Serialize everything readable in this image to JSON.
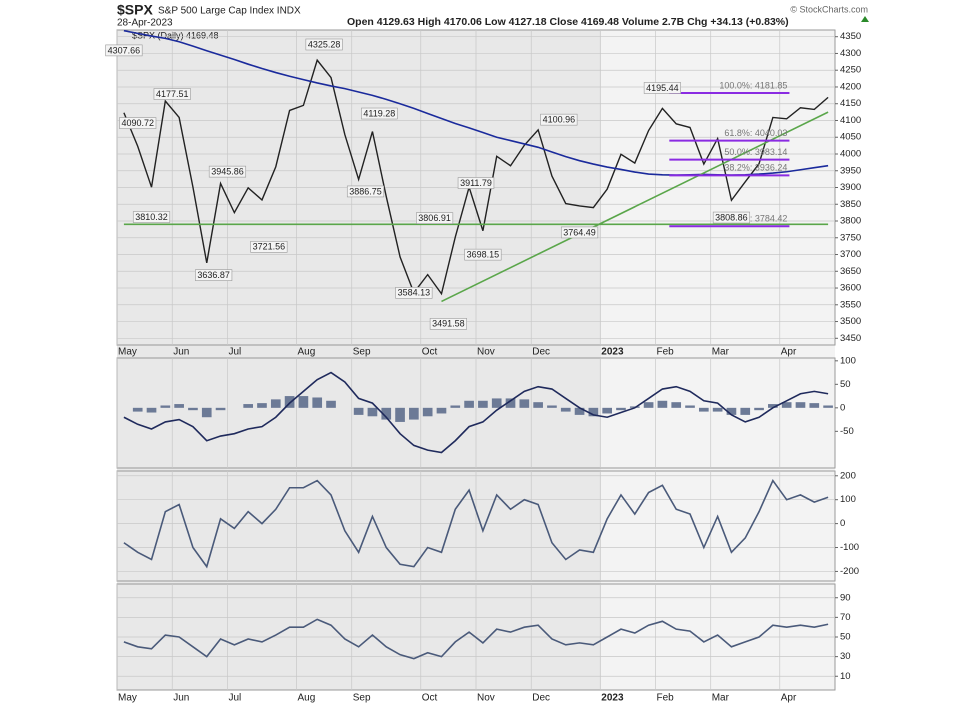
{
  "header": {
    "symbol": "$SPX",
    "name": "S&P 500 Large Cap Index INDX",
    "date": "28-Apr-2023",
    "quote": "Open 4129.63  High 4170.06  Low 4127.18  Close 4169.48  Volume 2.7B  Chg +34.13 (+0.83%)",
    "credit": "© StockCharts.com",
    "legend": "$SPX (Daily) 4169.48"
  },
  "chart_data": [
    {
      "type": "line",
      "categories": [
        "May",
        null,
        null,
        null,
        "Jun",
        null,
        null,
        null,
        "Jul",
        null,
        null,
        null,
        null,
        "Aug",
        null,
        null,
        null,
        "Sep",
        null,
        null,
        null,
        null,
        "Oct",
        null,
        null,
        null,
        "Nov",
        null,
        null,
        null,
        "Dec",
        null,
        null,
        null,
        null,
        "2023",
        null,
        null,
        null,
        "Feb",
        null,
        null,
        null,
        "Mar",
        null,
        null,
        null,
        null,
        "Apr",
        null,
        null,
        null
      ],
      "series": [
        {
          "name": "$SPX",
          "color": "#222222",
          "values": [
            4123,
            4023,
            3901,
            4158,
            4109,
            3901,
            3675,
            3912,
            3825,
            3899,
            3863,
            3962,
            4130,
            4145,
            4280,
            4228,
            4058,
            3924,
            4067,
            3873,
            3693,
            3586,
            3640,
            3583,
            3752,
            3901,
            3771,
            3993,
            3965,
            4026,
            4072,
            3934,
            3852,
            3845,
            3840,
            3895,
            3999,
            3973,
            4070,
            4136,
            4090,
            4079,
            3970,
            4046,
            3862,
            3917,
            3971,
            4109,
            4105,
            4138,
            4133,
            4169
          ]
        },
        {
          "name": "MA(200)",
          "color": "#1a2a9c",
          "values": [
            4368,
            4360,
            4352,
            4345,
            4335,
            4322,
            4308,
            4295,
            4282,
            4268,
            4255,
            4243,
            4232,
            4222,
            4212,
            4203,
            4195,
            4185,
            4175,
            4163,
            4150,
            4136,
            4121,
            4106,
            4091,
            4078,
            4064,
            4050,
            4040,
            4030,
            4020,
            4006,
            3992,
            3980,
            3970,
            3961,
            3954,
            3946,
            3940,
            3938,
            3937,
            3938,
            3939,
            3938,
            3937,
            3938,
            3940,
            3943,
            3947,
            3953,
            3959,
            3965
          ]
        }
      ],
      "trendlines": [
        {
          "color": "#5aa64a",
          "x": [
            0,
            51
          ],
          "values": [
            3790,
            3790
          ]
        },
        {
          "color": "#5aa64a",
          "x": [
            23,
            51
          ],
          "values": [
            3560,
            4125
          ]
        }
      ],
      "fib": {
        "color": "#8a2be2",
        "x": [
          39.5,
          48.2
        ],
        "levels": [
          {
            "label": "100.0%: 4181.85",
            "value": 4181.85
          },
          {
            "label": "61.8%: 4040.03",
            "value": 4040.03
          },
          {
            "label": "50.0%: 3983.14",
            "value": 3983.14
          },
          {
            "label": "38.2%: 3936.24",
            "value": 3936.24
          },
          {
            "label": "0.0%: 3784.42",
            "value": 3784.42
          }
        ]
      },
      "annotations": [
        {
          "x": 0,
          "value": 4307.66
        },
        {
          "x": 1,
          "value": 4090.72
        },
        {
          "x": 2,
          "value": 3810.32
        },
        {
          "x": 3.5,
          "value": 4177.51
        },
        {
          "x": 6.5,
          "value": 3636.87
        },
        {
          "x": 7.5,
          "value": 3945.86
        },
        {
          "x": 10.5,
          "value": 3721.56
        },
        {
          "x": 14.5,
          "value": 4325.28
        },
        {
          "x": 17.5,
          "value": 3886.75
        },
        {
          "x": 18.5,
          "value": 4119.28
        },
        {
          "x": 21,
          "value": 3584.13
        },
        {
          "x": 22.5,
          "value": 3806.91
        },
        {
          "x": 23.5,
          "value": 3491.58
        },
        {
          "x": 25.5,
          "value": 3911.79
        },
        {
          "x": 26,
          "value": 3698.15
        },
        {
          "x": 31.5,
          "value": 4100.96
        },
        {
          "x": 33,
          "value": 3764.49
        },
        {
          "x": 39,
          "value": 4195.44
        },
        {
          "x": 44,
          "value": 3808.86
        }
      ],
      "ylim": [
        3430,
        4370
      ],
      "yticks": [
        3450,
        3500,
        3550,
        3600,
        3650,
        3700,
        3750,
        3800,
        3850,
        3900,
        3950,
        4000,
        4050,
        4100,
        4150,
        4200,
        4250,
        4300,
        4350
      ],
      "grid": true
    },
    {
      "type": "combo",
      "series": [
        {
          "name": "MACD Histogram",
          "kind": "bar",
          "color": "#6c7a96",
          "values": [
            0,
            -8,
            -10,
            5,
            8,
            -5,
            -20,
            -5,
            0,
            8,
            10,
            18,
            25,
            25,
            22,
            15,
            0,
            -15,
            -18,
            -25,
            -30,
            -25,
            -18,
            -12,
            5,
            15,
            15,
            20,
            20,
            18,
            12,
            5,
            -8,
            -15,
            -18,
            -12,
            -5,
            3,
            12,
            15,
            12,
            5,
            -8,
            -8,
            -15,
            -15,
            -5,
            8,
            12,
            12,
            10,
            5
          ]
        },
        {
          "name": "MACD",
          "kind": "line",
          "color": "#1f2a5c",
          "values": [
            -20,
            -35,
            -45,
            -30,
            -25,
            -40,
            -70,
            -60,
            -55,
            -45,
            -40,
            -20,
            10,
            35,
            60,
            75,
            55,
            20,
            10,
            -20,
            -55,
            -80,
            -90,
            -95,
            -70,
            -40,
            -30,
            -5,
            15,
            35,
            45,
            40,
            20,
            0,
            -15,
            -20,
            -10,
            0,
            20,
            40,
            45,
            35,
            15,
            10,
            -15,
            -30,
            -20,
            0,
            15,
            30,
            35,
            30
          ]
        }
      ],
      "ylim": [
        -128,
        106
      ],
      "yticks": [
        100,
        50,
        0,
        -50
      ],
      "grid": false
    },
    {
      "type": "line",
      "series": [
        {
          "name": "CCI",
          "color": "#4a5a7a",
          "values": [
            -80,
            -120,
            -150,
            50,
            80,
            -100,
            -180,
            20,
            -20,
            50,
            0,
            60,
            150,
            150,
            180,
            120,
            -30,
            -120,
            30,
            -100,
            -170,
            -180,
            -100,
            -120,
            60,
            140,
            -30,
            120,
            60,
            100,
            80,
            -80,
            -150,
            -110,
            -120,
            20,
            120,
            40,
            130,
            160,
            60,
            40,
            -100,
            30,
            -120,
            -60,
            50,
            180,
            100,
            120,
            90,
            110
          ]
        }
      ],
      "ylim": [
        -240,
        220
      ],
      "yticks": [
        200,
        100,
        0,
        -100,
        -200
      ],
      "grid": true
    },
    {
      "type": "line",
      "series": [
        {
          "name": "RSI",
          "color": "#4a5a7a",
          "values": [
            45,
            40,
            38,
            52,
            50,
            40,
            30,
            48,
            42,
            48,
            45,
            52,
            60,
            60,
            68,
            62,
            48,
            40,
            52,
            40,
            32,
            28,
            34,
            30,
            45,
            55,
            44,
            58,
            55,
            60,
            62,
            48,
            42,
            44,
            42,
            50,
            58,
            54,
            62,
            66,
            58,
            56,
            45,
            52,
            40,
            45,
            50,
            62,
            60,
            62,
            60,
            63
          ]
        }
      ],
      "ylim": [
        -4,
        104
      ],
      "yticks": [
        90,
        70,
        50,
        30,
        10
      ],
      "grid": true
    }
  ]
}
